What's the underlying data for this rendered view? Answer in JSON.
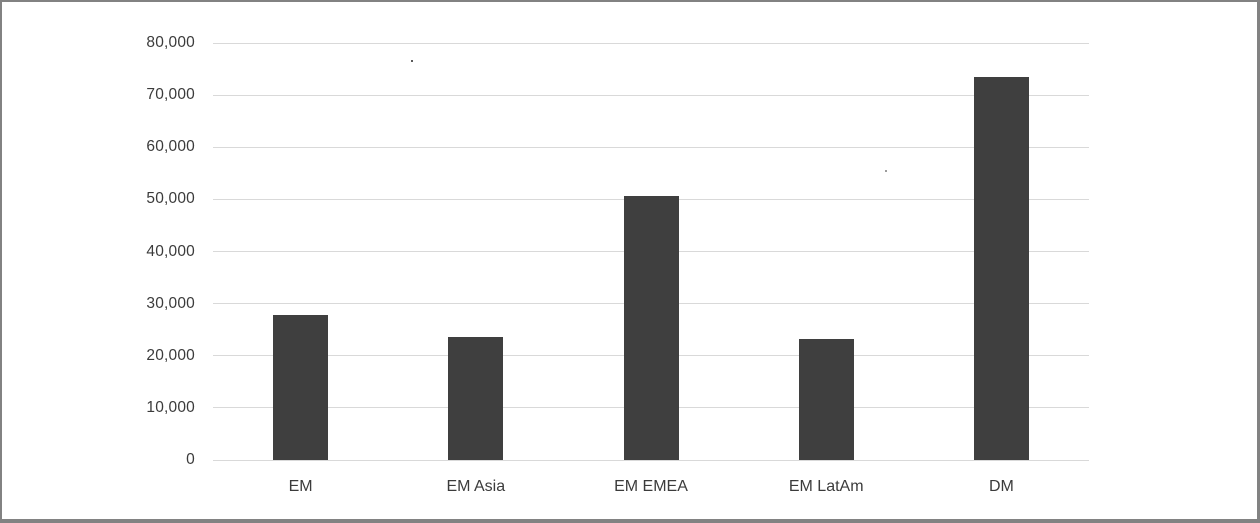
{
  "window": {
    "border_color": "#828282",
    "background": "#ffffff"
  },
  "chart_data": {
    "type": "bar",
    "title": "",
    "xlabel": "",
    "ylabel": "",
    "categories": [
      "EM",
      "EM Asia",
      "EM EMEA",
      "EM LatAm",
      "DM"
    ],
    "values": [
      27800,
      23600,
      50600,
      23300,
      73500
    ],
    "ylim": [
      0,
      80000
    ],
    "ytick_interval": 10000,
    "ytick_labels": [
      "0",
      "10,000",
      "20,000",
      "30,000",
      "40,000",
      "50,000",
      "60,000",
      "70,000",
      "80,000"
    ],
    "grid": true,
    "legend": false,
    "bar_color": "#3f3f3f",
    "gridline_color": "#d9d9d9",
    "label_color": "#3b3b3b"
  }
}
